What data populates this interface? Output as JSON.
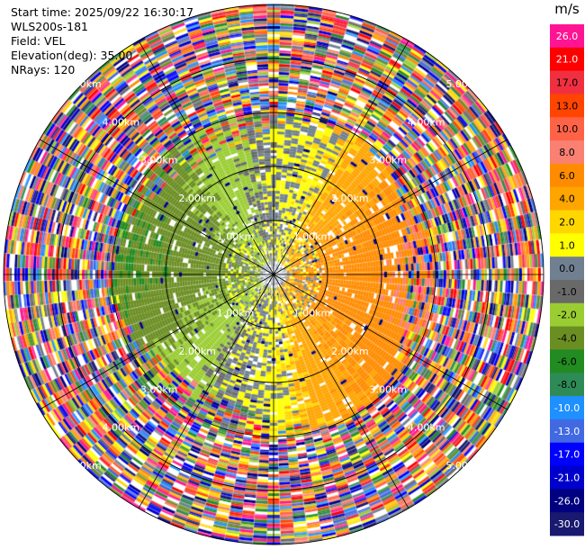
{
  "info": {
    "start_time": "Start time: 2025/09/22 16:30:17",
    "site": "WLS200s-181",
    "field": "Field: VEL",
    "elevation": "Elevation(deg): 35.00",
    "nrays": "NRays: 120"
  },
  "chart_data": {
    "type": "heatmap",
    "projection": "polar-ppi",
    "field": "VEL",
    "range_rings": [
      {
        "value": 1,
        "label": "1.00km"
      },
      {
        "value": 2,
        "label": "2.00km"
      },
      {
        "value": 3,
        "label": "3.00km"
      },
      {
        "value": 4,
        "label": "4.00km"
      },
      {
        "value": 5,
        "label": "5.00km"
      }
    ],
    "max_range_km": 5.0,
    "nrays": 120,
    "colorbar": {
      "unit": "m/s",
      "ticks": [
        "26.0",
        "21.0",
        "17.0",
        "13.0",
        "10.0",
        "8.0",
        "6.0",
        "4.0",
        "2.0",
        "1.0",
        "0.0",
        "-1.0",
        "-2.0",
        "-4.0",
        "-6.0",
        "-8.0",
        "-10.0",
        "-13.0",
        "-17.0",
        "-21.0",
        "-26.0",
        "-30.0"
      ],
      "colors": [
        "#ff1493",
        "#ff0000",
        "#f03040",
        "#ff4500",
        "#ff6347",
        "#fa8072",
        "#ff8c00",
        "#ffa500",
        "#ffd700",
        "#ffff00",
        "#708090",
        "#696969",
        "#9acd32",
        "#6b8e23",
        "#228b22",
        "#2e8b57",
        "#1e90ff",
        "#4169e1",
        "#0000ff",
        "#0000cd",
        "#000080",
        "#191970"
      ]
    }
  }
}
